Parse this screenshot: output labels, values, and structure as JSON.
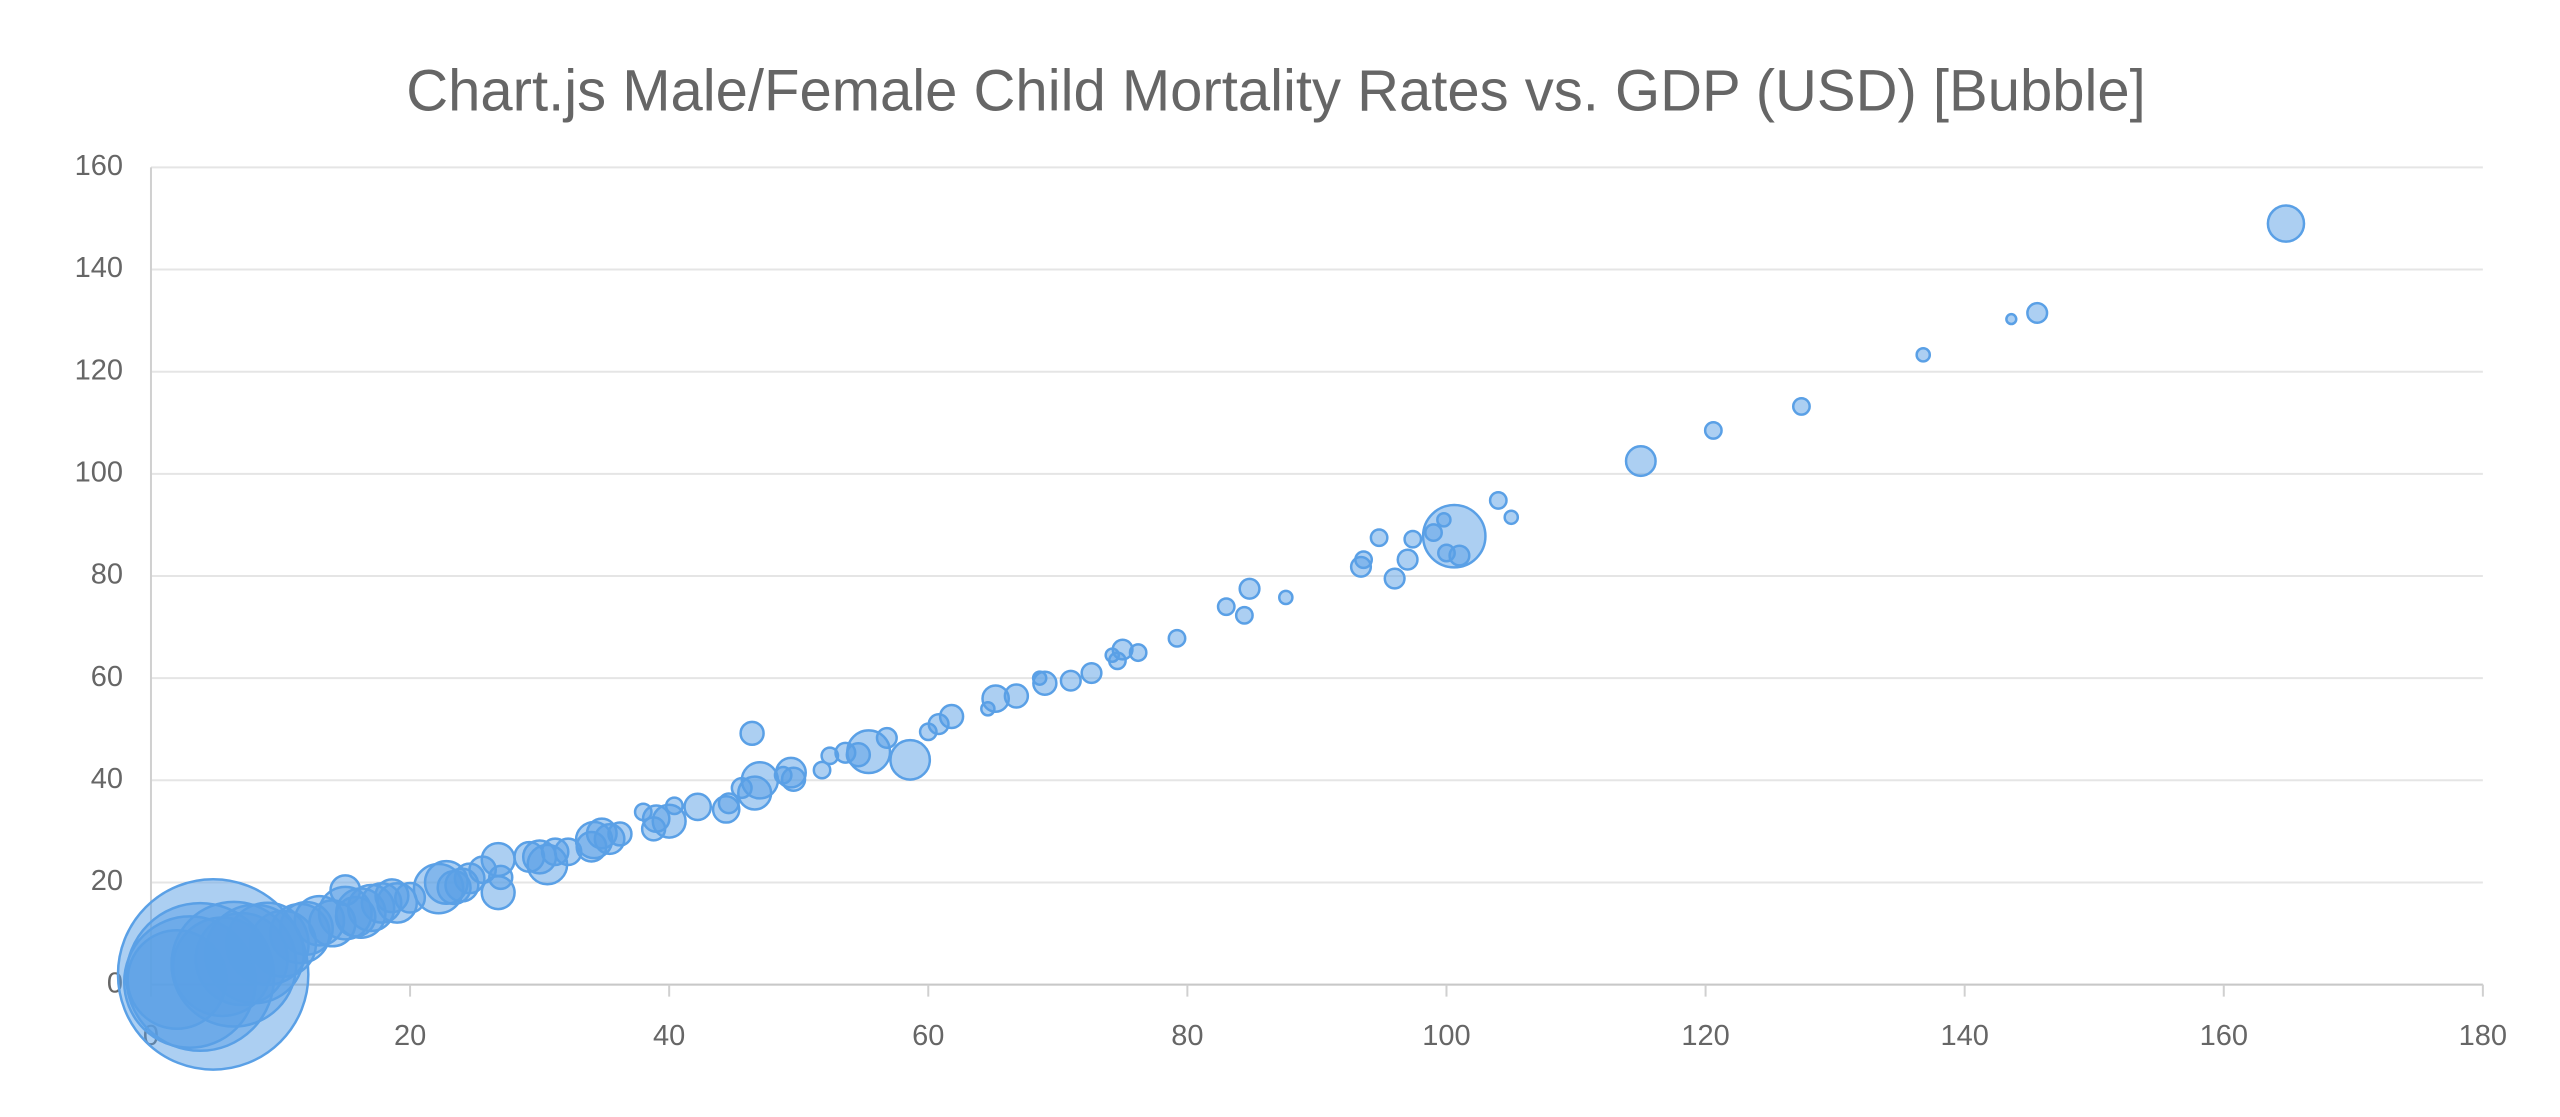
{
  "chart_data": {
    "type": "bubble",
    "title": "Chart.js Male/Female Child Mortality Rates vs. GDP (USD) [Bubble]",
    "xlim": [
      0,
      180
    ],
    "xticks": [
      0,
      20,
      40,
      60,
      80,
      100,
      120,
      140,
      160,
      180
    ],
    "ylim": [
      0,
      160
    ],
    "yticks": [
      0,
      20,
      40,
      60,
      80,
      100,
      120,
      140,
      160
    ],
    "grid": true,
    "series": [
      {
        "color": "#5aa0e6",
        "x": [
          164.8,
          145.6,
          143.6,
          136.8,
          127.4,
          120.6,
          115,
          105,
          104,
          101,
          100.6,
          100,
          99.8,
          99,
          97.4,
          97,
          96,
          94.8,
          93.6,
          93.4,
          87.6,
          84.8,
          84.4,
          83,
          79.2,
          76.2,
          75,
          74.6,
          74.2,
          72.6,
          71,
          69,
          68.6,
          66.8,
          65.2,
          64.6,
          61.8,
          60.8,
          60,
          58.6,
          56.8,
          55.4,
          54.6,
          53.6,
          52.4,
          51.8,
          49.6,
          49.4,
          48.8,
          47,
          46.6,
          46.4,
          45.6,
          44.4,
          44.6,
          42.2,
          40.4,
          40,
          39,
          38.8,
          38,
          36.2,
          35.4,
          34.8,
          34.2,
          34,
          32.2,
          31.2,
          30.6,
          30,
          29.2,
          27,
          26.8,
          26.8,
          25.6,
          24.6,
          24,
          23.4,
          22.8,
          22.2,
          20,
          19,
          18.6,
          17.8,
          17,
          16.2,
          15.8,
          15,
          15,
          14,
          13,
          12,
          11.5,
          10.2,
          9,
          8,
          7,
          6.4,
          5.5,
          4.8,
          3.8,
          3,
          2
        ],
        "values": [
          149,
          131.5,
          130.3,
          123.3,
          113.2,
          108.5,
          102.5,
          91.5,
          94.8,
          84,
          87.8,
          84.5,
          91,
          88.5,
          87.2,
          83.2,
          79.5,
          87.5,
          83.2,
          81.8,
          75.8,
          77.5,
          72.3,
          74,
          67.8,
          65,
          65.6,
          63.4,
          64.5,
          61,
          59.5,
          59,
          60,
          56.5,
          56,
          54,
          52.5,
          51,
          49.5,
          44,
          48.3,
          45.6,
          45,
          45.4,
          44.8,
          42,
          40.2,
          41.5,
          41,
          40,
          37.5,
          49.2,
          38.5,
          34.3,
          35.5,
          34.8,
          35,
          32,
          32.5,
          30.5,
          33.8,
          29.5,
          28.5,
          29.6,
          28.3,
          27,
          26,
          26,
          23.5,
          25,
          25,
          21,
          18,
          24.5,
          22.5,
          20.8,
          19.5,
          19,
          20,
          18.8,
          17,
          16,
          17.4,
          16,
          15,
          14,
          13.3,
          18.5,
          14,
          12,
          12.5,
          11,
          10,
          8,
          8,
          6,
          5,
          4,
          3.5,
          2,
          1.5,
          0.5,
          1
        ],
        "sizes": [
          11,
          6,
          3,
          4,
          5,
          5,
          9,
          4,
          5,
          6,
          19,
          5,
          4,
          5,
          5,
          6,
          6,
          5,
          5,
          6,
          4,
          6,
          5,
          5,
          5,
          5,
          6,
          5,
          4,
          6,
          6,
          7,
          4,
          7,
          8,
          4,
          7,
          6,
          5,
          12,
          6,
          13,
          7,
          6,
          5,
          5,
          7,
          9,
          5,
          11,
          10,
          7,
          6,
          8,
          6,
          8,
          5,
          10,
          8,
          7,
          5,
          7,
          9,
          9,
          11,
          9,
          8,
          8,
          12,
          10,
          9,
          7,
          10,
          10,
          8,
          9,
          10,
          10,
          13,
          15,
          9,
          12,
          10,
          12,
          14,
          15,
          12,
          9,
          16,
          14,
          15,
          16,
          18,
          20,
          25,
          30,
          28,
          38,
          30,
          58,
          45,
          40,
          30
        ]
      }
    ]
  }
}
